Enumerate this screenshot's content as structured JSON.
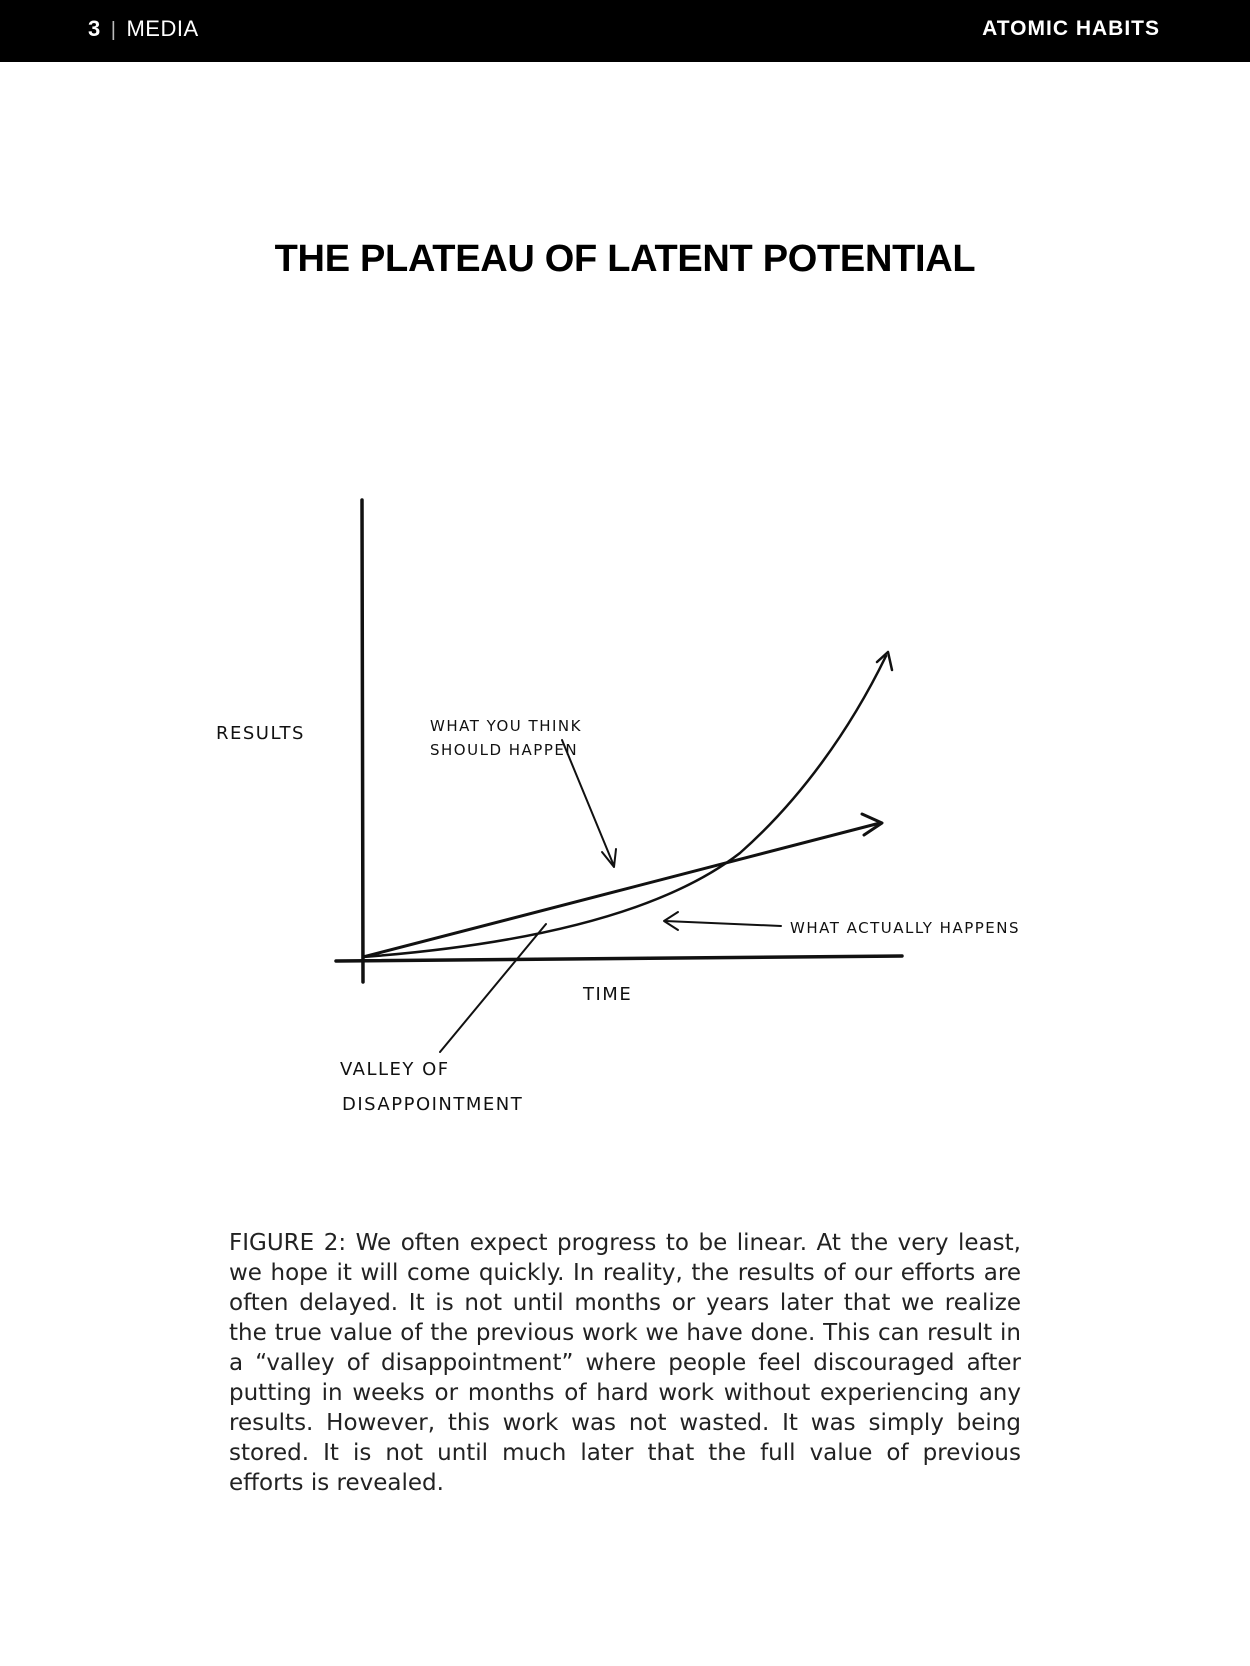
{
  "header": {
    "page_number": "3",
    "separator": "|",
    "section": "MEDIA",
    "book_title": "ATOMIC HABITS"
  },
  "figure": {
    "title": "THE PLATEAU OF LATENT POTENTIAL",
    "y_axis_label": "RESULTS",
    "x_axis_label": "TIME",
    "annotation_expected_line1": "WHAT YOU THINK",
    "annotation_expected_line2": "SHOULD HAPPEN",
    "annotation_actual": "WHAT ACTUALLY HAPPENS",
    "annotation_valley_line1": "VALLEY OF",
    "annotation_valley_line2": "DISAPPOINTMENT",
    "stroke_color": "#111111"
  },
  "caption": {
    "text": "FIGURE 2: We often expect progress to be linear. At the very least, we hope it will come quickly. In reality, the results of our efforts are often delayed. It is not until months or years later that we realize the true value of the previous work we have done. This can result in a “valley of disappointment” where people feel dis­couraged after putting in weeks or months of hard work without experiencing any results. However, this work was not wasted. It was simply being stored. It is not until much later that the full val­ue of previous efforts is revealed."
  }
}
